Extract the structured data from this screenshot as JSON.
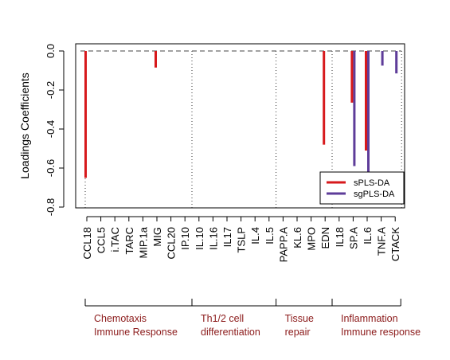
{
  "chart_data": {
    "type": "bar",
    "ylabel": "Loadings Coefficients",
    "ylim": [
      -0.8,
      0.0
    ],
    "yticks": [
      0.0,
      -0.2,
      -0.4,
      -0.6,
      -0.8
    ],
    "ytick_labels": [
      "0.0",
      "-0.2",
      "-0.4",
      "-0.6",
      "-0.8"
    ],
    "categories": [
      "CCL18",
      "CCL5",
      "i.TAC",
      "TARC",
      "MIP.1a",
      "MIG",
      "CCL20",
      "IP.10",
      "IL.10",
      "IL.16",
      "IL17",
      "TSLP",
      "IL.4",
      "IL.5",
      "PAPP.A",
      "KL.6",
      "MPO",
      "EDN",
      "IL18",
      "SP.A",
      "IL.6",
      "TNF.A",
      "CTACK"
    ],
    "series": [
      {
        "name": "sPLS-DA",
        "color": "#d7191c",
        "values": [
          -0.65,
          0,
          0,
          0,
          0,
          -0.085,
          0,
          0,
          0,
          0,
          0,
          0,
          0,
          0,
          0,
          0,
          0,
          -0.48,
          0,
          -0.265,
          -0.51,
          0,
          0
        ]
      },
      {
        "name": "sgPLS-DA",
        "color": "#5e3c99",
        "values": [
          0,
          0,
          0,
          0,
          0,
          0,
          0,
          0,
          0,
          0,
          0,
          0,
          0,
          0,
          0,
          0,
          0,
          0,
          0,
          -0.59,
          -0.645,
          -0.075,
          -0.115
        ]
      }
    ],
    "group_boundaries_after_category": [
      7,
      13,
      17
    ],
    "groups": [
      {
        "line1": "Chemotaxis",
        "line2": "Immune Response",
        "start": 0,
        "end": 7
      },
      {
        "line1": "Th1/2 cell",
        "line2": "differentiation",
        "start": 8,
        "end": 13
      },
      {
        "line1": "Tissue",
        "line2": "repair",
        "start": 14,
        "end": 17
      },
      {
        "line1": "Inflammation",
        "line2": "Immune response",
        "start": 18,
        "end": 22
      }
    ],
    "legend_position": "bottom-right",
    "grid": false
  }
}
